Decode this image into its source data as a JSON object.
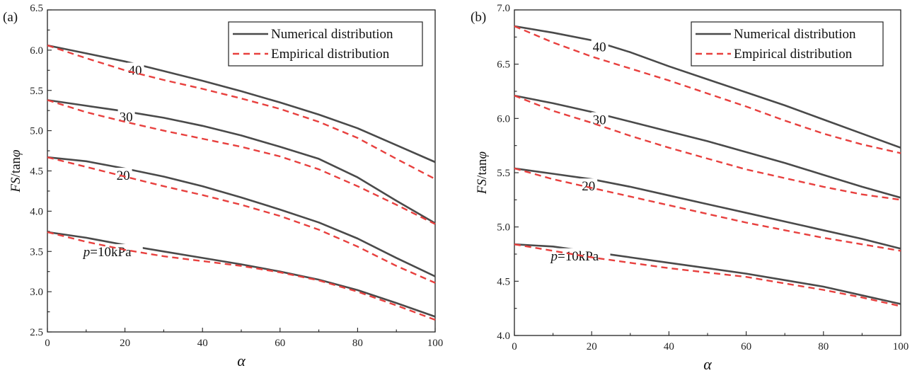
{
  "chart_data": [
    {
      "type": "line",
      "panel_label": "(a)",
      "xlabel": "α",
      "ylabel_italic": "FS",
      "ylabel_rest": "/tan",
      "ylabel_phi": "φ",
      "xlim": [
        0,
        100
      ],
      "ylim": [
        2.5,
        6.5
      ],
      "xticks": [
        0,
        20,
        40,
        60,
        80,
        100
      ],
      "yticks": [
        2.5,
        3.0,
        3.5,
        4.0,
        4.5,
        5.0,
        5.5,
        6.0,
        6.5
      ],
      "ytick_labels": [
        "2.5",
        "3.0",
        "3.5",
        "4.0",
        "4.5",
        "5.0",
        "5.5",
        "6.0",
        "6.5"
      ],
      "legend": {
        "position": "top-right",
        "entries": [
          "Numerical distribution",
          "Empirical distribution"
        ]
      },
      "x": [
        0,
        10,
        20,
        30,
        40,
        50,
        60,
        70,
        80,
        90,
        100
      ],
      "series": [
        {
          "name": "Numerical distribution",
          "group": "p=10kPa",
          "label": "p=10kPa",
          "label_p": "p",
          "label_rest": "=10kPa",
          "label_x": 10,
          "values": [
            3.74,
            3.67,
            3.58,
            3.5,
            3.42,
            3.34,
            3.25,
            3.15,
            3.02,
            2.86,
            2.69
          ]
        },
        {
          "name": "Empirical distribution",
          "group": "p=10kPa",
          "values": [
            3.74,
            3.62,
            3.52,
            3.44,
            3.38,
            3.32,
            3.24,
            3.14,
            3.0,
            2.83,
            2.65
          ]
        },
        {
          "name": "Numerical distribution",
          "group": "20",
          "label": "20",
          "label_x": 20,
          "values": [
            4.67,
            4.62,
            4.53,
            4.43,
            4.31,
            4.17,
            4.02,
            3.86,
            3.66,
            3.42,
            3.19
          ]
        },
        {
          "name": "Empirical distribution",
          "group": "20",
          "values": [
            4.67,
            4.55,
            4.43,
            4.31,
            4.2,
            4.08,
            3.94,
            3.77,
            3.56,
            3.32,
            3.11
          ]
        },
        {
          "name": "Numerical distribution",
          "group": "30",
          "label": "30",
          "label_x": 20,
          "values": [
            5.38,
            5.31,
            5.24,
            5.16,
            5.06,
            4.94,
            4.8,
            4.65,
            4.42,
            4.13,
            3.85
          ]
        },
        {
          "name": "Empirical distribution",
          "group": "30",
          "values": [
            5.38,
            5.23,
            5.11,
            5.0,
            4.9,
            4.8,
            4.68,
            4.52,
            4.31,
            4.08,
            3.84
          ]
        },
        {
          "name": "Numerical distribution",
          "group": "40",
          "label": "40",
          "label_x": 22,
          "values": [
            6.06,
            5.96,
            5.86,
            5.74,
            5.62,
            5.49,
            5.35,
            5.2,
            5.03,
            4.82,
            4.61
          ]
        },
        {
          "name": "Empirical distribution",
          "group": "40",
          "values": [
            6.06,
            5.9,
            5.75,
            5.63,
            5.52,
            5.4,
            5.27,
            5.11,
            4.91,
            4.65,
            4.4
          ]
        }
      ]
    },
    {
      "type": "line",
      "panel_label": "(b)",
      "xlabel": "α",
      "ylabel_italic": "FS",
      "ylabel_rest": "/tan",
      "ylabel_phi": "φ",
      "xlim": [
        0,
        100
      ],
      "ylim": [
        4.0,
        7.0
      ],
      "xticks": [
        0,
        20,
        40,
        60,
        80,
        100
      ],
      "yticks": [
        4.0,
        4.5,
        5.0,
        5.5,
        6.0,
        6.5,
        7.0
      ],
      "ytick_labels": [
        "4.0",
        "4.5",
        "5.0",
        "5.5",
        "6.0",
        "6.5",
        "7.0"
      ],
      "legend": {
        "position": "top-right",
        "entries": [
          "Numerical distribution",
          "Empirical distribution"
        ]
      },
      "x": [
        0,
        10,
        20,
        30,
        40,
        50,
        60,
        70,
        80,
        90,
        100
      ],
      "series": [
        {
          "name": "Numerical distribution",
          "group": "p=10kPa",
          "label": "p=10kPa",
          "label_p": "p",
          "label_rest": "=10kPa",
          "label_x": 12,
          "values": [
            4.84,
            4.82,
            4.77,
            4.72,
            4.67,
            4.62,
            4.57,
            4.51,
            4.45,
            4.37,
            4.29
          ]
        },
        {
          "name": "Empirical distribution",
          "group": "p=10kPa",
          "values": [
            4.84,
            4.78,
            4.72,
            4.67,
            4.62,
            4.58,
            4.54,
            4.48,
            4.42,
            4.35,
            4.27
          ]
        },
        {
          "name": "Numerical distribution",
          "group": "20",
          "label": "20",
          "label_x": 20,
          "values": [
            5.54,
            5.49,
            5.44,
            5.37,
            5.29,
            5.21,
            5.13,
            5.05,
            4.97,
            4.89,
            4.8
          ]
        },
        {
          "name": "Empirical distribution",
          "group": "20",
          "values": [
            5.54,
            5.44,
            5.36,
            5.28,
            5.2,
            5.12,
            5.04,
            4.97,
            4.9,
            4.84,
            4.78
          ]
        },
        {
          "name": "Numerical distribution",
          "group": "30",
          "label": "30",
          "label_x": 21,
          "values": [
            6.21,
            6.14,
            6.06,
            5.97,
            5.88,
            5.79,
            5.69,
            5.59,
            5.48,
            5.37,
            5.27
          ]
        },
        {
          "name": "Empirical distribution",
          "group": "30",
          "values": [
            6.21,
            6.07,
            5.96,
            5.84,
            5.73,
            5.63,
            5.53,
            5.45,
            5.37,
            5.3,
            5.25
          ]
        },
        {
          "name": "Numerical distribution",
          "group": "40",
          "label": "40",
          "label_x": 21,
          "values": [
            6.85,
            6.79,
            6.72,
            6.61,
            6.48,
            6.36,
            6.24,
            6.12,
            5.99,
            5.86,
            5.73
          ]
        },
        {
          "name": "Empirical distribution",
          "group": "40",
          "values": [
            6.85,
            6.7,
            6.57,
            6.46,
            6.35,
            6.23,
            6.11,
            5.98,
            5.86,
            5.76,
            5.68
          ]
        }
      ]
    }
  ],
  "colors": {
    "numerical": "#4a4a4a",
    "empirical": "#e8403e",
    "axis": "#222222"
  }
}
